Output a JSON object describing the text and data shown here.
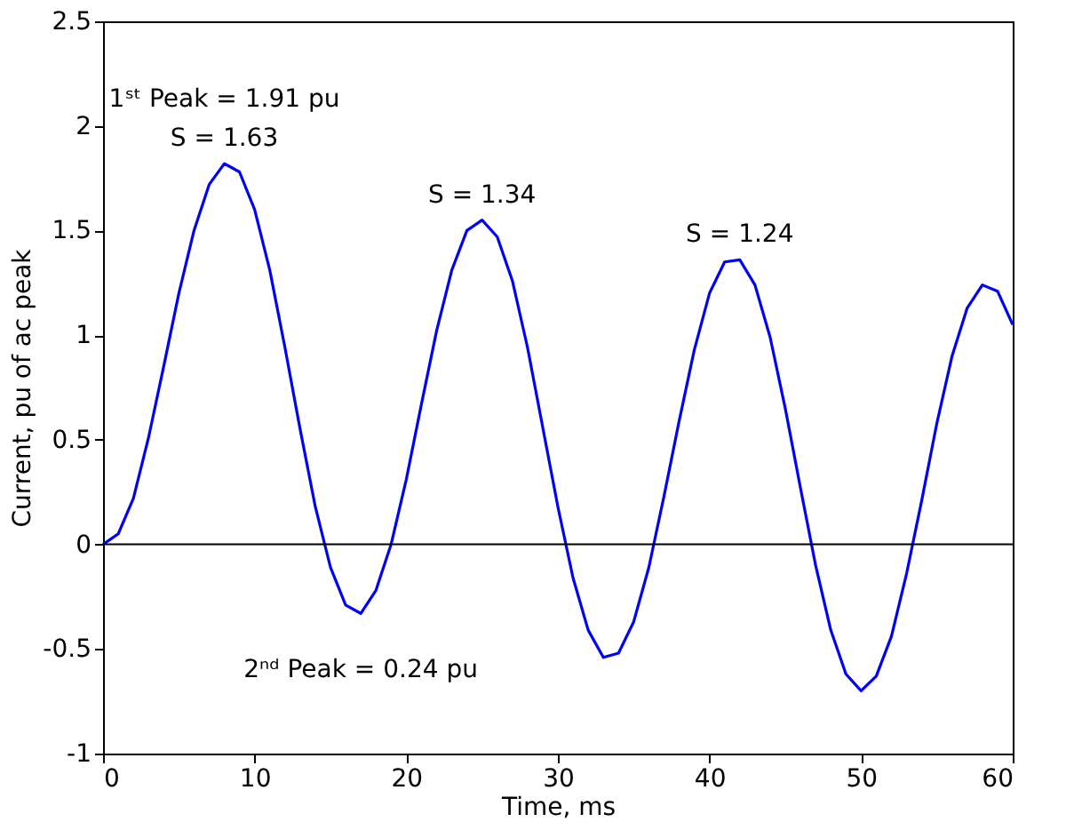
{
  "chart_data": {
    "type": "line",
    "xlabel": "Time, ms",
    "ylabel": "Current, pu of ac peak",
    "x": [
      0,
      1,
      2,
      3,
      4,
      5,
      6,
      7,
      8,
      9,
      10,
      11,
      12,
      13,
      14,
      15,
      16,
      17,
      18,
      19,
      20,
      21,
      22,
      23,
      24,
      25,
      26,
      27,
      28,
      29,
      30,
      31,
      32,
      33,
      34,
      35,
      36,
      37,
      38,
      39,
      40,
      41,
      42,
      43,
      44,
      45,
      46,
      47,
      48,
      49,
      50,
      51,
      52,
      53,
      54,
      55,
      56,
      57,
      58,
      59,
      60
    ],
    "series": [
      {
        "color": "#0000ff",
        "values": [
          0,
          0.05,
          0.22,
          0.51,
          0.85,
          1.2,
          1.5,
          1.72,
          1.82,
          1.78,
          1.6,
          1.31,
          0.94,
          0.55,
          0.18,
          -0.11,
          -0.29,
          -0.33,
          -0.22,
          0.0,
          0.31,
          0.67,
          1.02,
          1.31,
          1.5,
          1.55,
          1.47,
          1.26,
          0.94,
          0.56,
          0.18,
          -0.16,
          -0.41,
          -0.54,
          -0.52,
          -0.37,
          -0.11,
          0.23,
          0.59,
          0.93,
          1.2,
          1.35,
          1.36,
          1.24,
          0.99,
          0.65,
          0.27,
          -0.1,
          -0.41,
          -0.62,
          -0.7,
          -0.63,
          -0.44,
          -0.14,
          0.21,
          0.58,
          0.9,
          1.13,
          1.24,
          1.21,
          1.05
        ]
      }
    ],
    "xlim": [
      0,
      60
    ],
    "xticks": [
      0,
      10,
      20,
      30,
      40,
      50,
      60
    ],
    "ylim": [
      -1,
      2.5
    ],
    "yticks": [
      -1,
      -0.5,
      0,
      0.5,
      1,
      1.5,
      2,
      2.5
    ],
    "grid": false,
    "marker": "none",
    "line_style": "solid",
    "ref_lines": [
      {
        "axis": "y",
        "value": 0,
        "color": "#000000"
      }
    ],
    "annotations": [
      {
        "text": "1ˢᵗ Peak = 1.91 pu",
        "x": 8,
        "y": 1.82
      },
      {
        "text": "S = 1.63",
        "x": 8,
        "y": 1.82
      },
      {
        "text": "S = 1.34",
        "x": 25,
        "y": 1.55
      },
      {
        "text": "S = 1.24",
        "x": 42,
        "y": 1.36
      },
      {
        "text": "2ⁿᵈ Peak = 0.24 pu",
        "x": 17,
        "y": -0.33
      }
    ]
  }
}
